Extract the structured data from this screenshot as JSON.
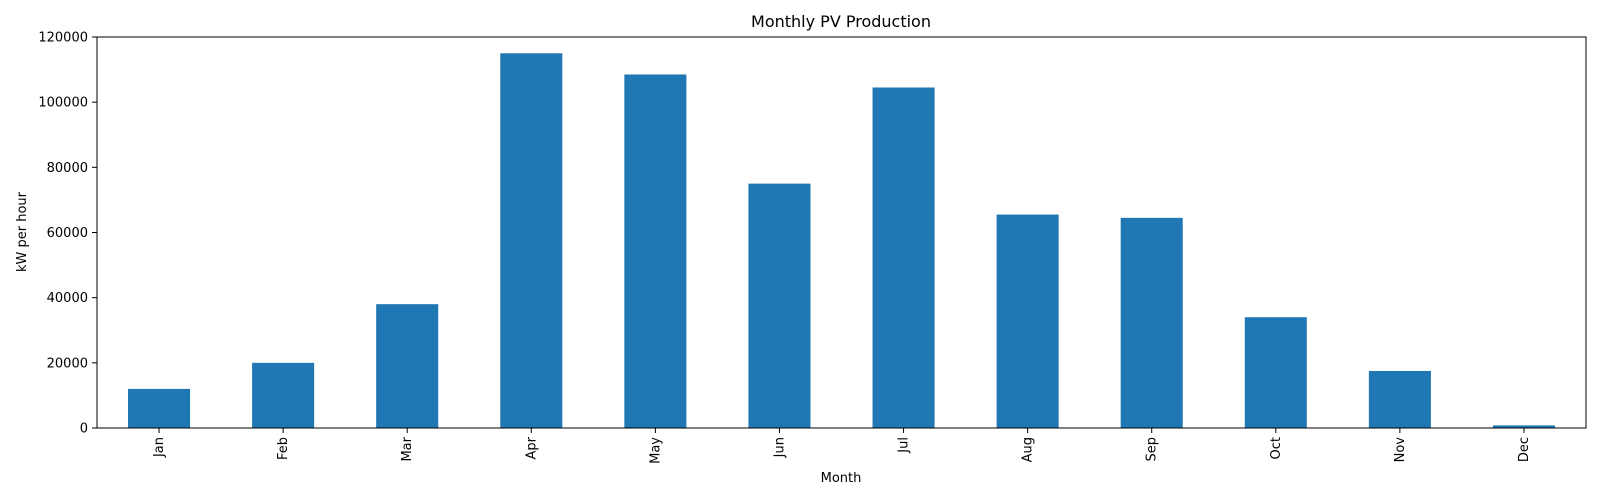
{
  "chart_data": {
    "type": "bar",
    "title": "Monthly PV Production",
    "xlabel": "Month",
    "ylabel": "kW per hour",
    "categories": [
      "Jan",
      "Feb",
      "Mar",
      "Apr",
      "May",
      "Jun",
      "Jul",
      "Aug",
      "Sep",
      "Oct",
      "Nov",
      "Dec"
    ],
    "values": [
      12000,
      20000,
      38000,
      115000,
      108500,
      75000,
      104500,
      65500,
      64500,
      34000,
      17500,
      800
    ],
    "ylim": [
      0,
      120000
    ],
    "yticks": [
      0,
      20000,
      40000,
      60000,
      80000,
      100000,
      120000
    ],
    "ytick_labels": [
      "0",
      "20000",
      "40000",
      "60000",
      "80000",
      "100000",
      "120000"
    ],
    "grid": false,
    "legend": "none",
    "bar_color": "#1f77b4"
  }
}
